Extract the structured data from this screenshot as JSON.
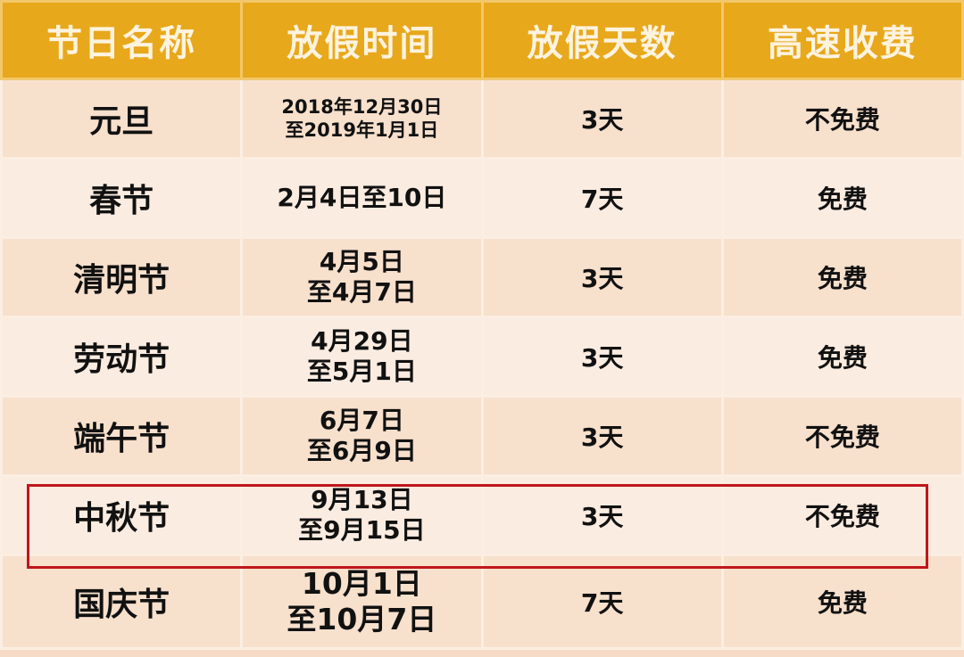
{
  "table": {
    "headers": [
      "节日名称",
      "放假时间",
      "放假天数",
      "高速收费"
    ],
    "rows": [
      {
        "name": "元旦",
        "date": [
          "2018年12月30日",
          "至2019年1月1日"
        ],
        "days": "3天",
        "fee": "不免费"
      },
      {
        "name": "春节",
        "date": [
          "2月4日至10日"
        ],
        "days": "7天",
        "fee": "免费"
      },
      {
        "name": "清明节",
        "date": [
          "4月5日",
          "至4月7日"
        ],
        "days": "3天",
        "fee": "免费"
      },
      {
        "name": "劳动节",
        "date": [
          "4月29日",
          "至5月1日"
        ],
        "days": "3天",
        "fee": "免费"
      },
      {
        "name": "端午节",
        "date": [
          "6月7日",
          "至6月9日"
        ],
        "days": "3天",
        "fee": "不免费"
      },
      {
        "name": "中秋节",
        "date": [
          "9月13日",
          "至9月15日"
        ],
        "days": "3天",
        "fee": "不免费",
        "highlighted": true
      },
      {
        "name": "国庆节",
        "date": [
          "10月1日",
          "至10月7日"
        ],
        "days": "7天",
        "fee": "免费"
      }
    ]
  },
  "colors": {
    "header": "#e8a81c",
    "header_text": "#fdf3df",
    "highlight_border": "#c0161c"
  }
}
